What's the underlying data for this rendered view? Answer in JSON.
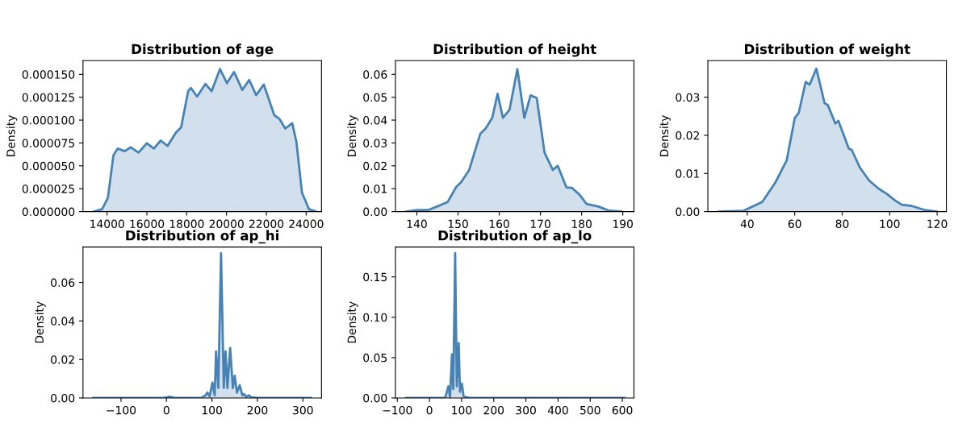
{
  "chart_data": [
    {
      "type": "area",
      "title": "Distribution of age",
      "ylabel": "Density",
      "xlim": [
        12790,
        24770
      ],
      "ylim": [
        0,
        0.000165
      ],
      "xticks": [
        14000,
        16000,
        18000,
        20000,
        22000,
        24000
      ],
      "yticks": [
        {
          "value": 0,
          "label": "0.000000"
        },
        {
          "value": 2.5e-05,
          "label": "0.000025"
        },
        {
          "value": 5e-05,
          "label": "0.000050"
        },
        {
          "value": 7.5e-05,
          "label": "0.000075"
        },
        {
          "value": 0.0001,
          "label": "0.000100"
        },
        {
          "value": 0.000125,
          "label": "0.000125"
        },
        {
          "value": 0.00015,
          "label": "0.000150"
        }
      ],
      "grid": false,
      "legend": false,
      "x": [
        13330,
        13750,
        14040,
        14320,
        14530,
        14880,
        15190,
        15580,
        16000,
        16350,
        16690,
        17040,
        17460,
        17720,
        18070,
        18210,
        18520,
        18940,
        19250,
        19670,
        20020,
        20380,
        20790,
        21140,
        21490,
        21870,
        22400,
        22670,
        22950,
        23300,
        23510,
        23790,
        24140,
        24490
      ],
      "series": [
        {
          "color": "#4682b4",
          "values": [
            0,
            2.6e-06,
            1.49e-05,
            6.16e-05,
            6.89e-05,
            6.6e-05,
            7.03e-05,
            6.45e-05,
            7.47e-05,
            6.89e-05,
            7.76e-05,
            7.18e-05,
            8.64e-05,
            9.22e-05,
            0.0001316,
            0.0001351,
            0.0001258,
            0.0001395,
            0.0001316,
            0.0001558,
            0.0001404,
            0.0001526,
            0.000133,
            0.0001439,
            0.0001272,
            0.0001389,
            0.0001054,
            0.000101,
            9.08e-05,
            9.66e-05,
            7.62e-05,
            2.07e-05,
            2.6e-06,
            0
          ]
        }
      ]
    },
    {
      "type": "area",
      "title": "Distribution of height",
      "ylabel": "Density",
      "xlim": [
        134.8,
        192.7
      ],
      "ylim": [
        0,
        0.066
      ],
      "xticks": [
        140,
        150,
        160,
        170,
        180,
        190
      ],
      "yticks": [
        {
          "value": 0,
          "label": "0.00"
        },
        {
          "value": 0.01,
          "label": "0.01"
        },
        {
          "value": 0.02,
          "label": "0.02"
        },
        {
          "value": 0.03,
          "label": "0.03"
        },
        {
          "value": 0.04,
          "label": "0.04"
        },
        {
          "value": 0.05,
          "label": "0.05"
        },
        {
          "value": 0.06,
          "label": "0.06"
        }
      ],
      "grid": false,
      "legend": false,
      "x": [
        137.4,
        139.7,
        143.0,
        144.9,
        147.5,
        149.5,
        150.8,
        152.7,
        155.4,
        156.7,
        158.3,
        159.6,
        160.9,
        162.5,
        164.4,
        166.1,
        167.6,
        169.1,
        171.0,
        173.0,
        174.2,
        176.3,
        177.6,
        179.5,
        181.2,
        184.1,
        186.7,
        189.7
      ],
      "series": [
        {
          "color": "#4682b4",
          "values": [
            0,
            0.0006,
            0.0008,
            0.0022,
            0.0042,
            0.0106,
            0.013,
            0.0182,
            0.034,
            0.0363,
            0.041,
            0.0515,
            0.041,
            0.0445,
            0.0623,
            0.041,
            0.0508,
            0.0497,
            0.0258,
            0.0182,
            0.02,
            0.0106,
            0.0104,
            0.0074,
            0.0033,
            0.0022,
            0.0004,
            0
          ]
        }
      ]
    },
    {
      "type": "area",
      "title": "Distribution of weight",
      "ylabel": "Density",
      "xlim": [
        23.4,
        123.9
      ],
      "ylim": [
        0,
        0.0396
      ],
      "xticks": [
        40,
        60,
        80,
        100,
        120
      ],
      "yticks": [
        {
          "value": 0,
          "label": "0.00"
        },
        {
          "value": 0.01,
          "label": "0.01"
        },
        {
          "value": 0.02,
          "label": "0.02"
        },
        {
          "value": 0.03,
          "label": "0.03"
        }
      ],
      "grid": false,
      "legend": false,
      "x": [
        28.0,
        38.3,
        46.3,
        52.0,
        56.6,
        60.0,
        61.7,
        64.6,
        66.3,
        69.1,
        72.6,
        73.9,
        77.1,
        78.4,
        82.8,
        84.0,
        87.4,
        91.4,
        95.4,
        98.9,
        102.3,
        105.1,
        109.1,
        114.9,
        120
      ],
      "series": [
        {
          "color": "#4682b4",
          "values": [
            0,
            0.0002,
            0.0025,
            0.0078,
            0.0134,
            0.0245,
            0.0259,
            0.034,
            0.0333,
            0.0375,
            0.0284,
            0.028,
            0.0231,
            0.0238,
            0.0165,
            0.0162,
            0.0116,
            0.0081,
            0.006,
            0.0046,
            0.0029,
            0.0018,
            0.0015,
            0.0004,
            0
          ]
        }
      ]
    },
    {
      "type": "area",
      "title": "Distribution of ap_hi",
      "ylabel": "Density",
      "xlim": [
        -183.6,
        340.9
      ],
      "ylim": [
        0,
        0.0784
      ],
      "xticks": [
        {
          "value": -100,
          "label": "−100"
        },
        0,
        100,
        200,
        300
      ],
      "yticks": [
        {
          "value": 0,
          "label": "0.00"
        },
        {
          "value": 0.02,
          "label": "0.02"
        },
        {
          "value": 0.04,
          "label": "0.04"
        },
        {
          "value": 0.06,
          "label": "0.06"
        }
      ],
      "grid": false,
      "legend": false,
      "x": [
        -161,
        -6,
        7,
        18,
        77,
        86,
        90,
        95,
        101,
        106,
        109,
        114,
        120,
        126,
        130,
        134,
        140,
        146,
        150,
        155,
        161,
        167,
        171,
        175,
        181,
        187,
        202,
        318
      ],
      "series": [
        {
          "color": "#4682b4",
          "values": [
            0,
            0,
            0.0007,
            0,
            0,
            0.0014,
            0.0028,
            0.0008,
            0.008,
            0.0014,
            0.0242,
            0.0052,
            0.0752,
            0.0052,
            0.0242,
            0.0052,
            0.026,
            0.0052,
            0.0115,
            0.0028,
            0.0066,
            0.0014,
            0.002,
            0.0006,
            0.0014,
            0.0003,
            0,
            0
          ]
        }
      ]
    },
    {
      "type": "area",
      "title": "Distribution of ap_lo",
      "ylabel": "Density",
      "xlim": [
        -105.8,
        636
      ],
      "ylim": [
        0,
        0.187
      ],
      "xticks": [
        {
          "value": -100,
          "label": "−100"
        },
        0,
        100,
        200,
        300,
        400,
        500,
        600
      ],
      "yticks": [
        {
          "value": 0,
          "label": "0.00"
        },
        {
          "value": 0.05,
          "label": "0.05"
        },
        {
          "value": 0.1,
          "label": "0.10"
        },
        {
          "value": 0.15,
          "label": "0.15"
        }
      ],
      "grid": false,
      "legend": false,
      "x": [
        -73,
        49,
        59,
        64,
        70,
        74,
        80,
        85,
        91,
        95,
        101,
        106,
        112,
        125,
        607
      ],
      "series": [
        {
          "color": "#4682b4",
          "values": [
            0,
            0,
            0.0144,
            0.001,
            0.0539,
            0.011,
            0.1794,
            0.0144,
            0.068,
            0.0077,
            0.0177,
            0.0023,
            0.001,
            0,
            0
          ]
        }
      ]
    }
  ]
}
